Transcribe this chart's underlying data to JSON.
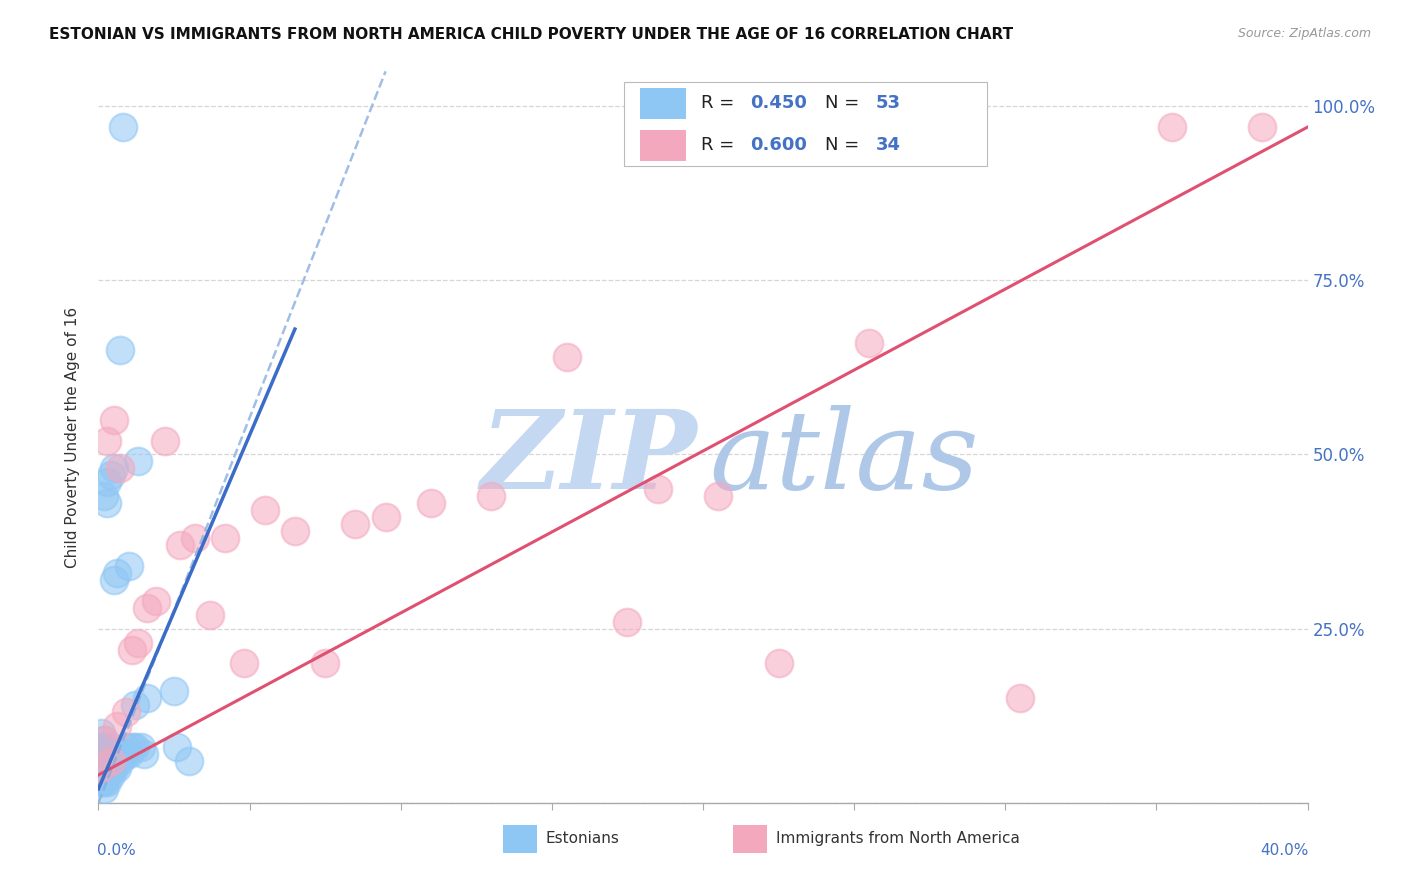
{
  "title": "ESTONIAN VS IMMIGRANTS FROM NORTH AMERICA CHILD POVERTY UNDER THE AGE OF 16 CORRELATION CHART",
  "source": "Source: ZipAtlas.com",
  "ylabel": "Child Poverty Under the Age of 16",
  "r_estonian": "0.450",
  "n_estonian": "53",
  "r_na": "0.600",
  "n_na": "34",
  "estonian_color": "#8EC6F4",
  "na_color": "#F4A8BE",
  "regression_estonian_solid_color": "#3A6CC8",
  "regression_estonian_dashed_color": "#8AAEE0",
  "regression_na_color": "#E05070",
  "watermark_zip_color": "#C5D8F2",
  "watermark_atlas_color": "#B0C8E8",
  "background_color": "#FFFFFF",
  "estonian_x": [
    0.001,
    0.001,
    0.001,
    0.001,
    0.001,
    0.001,
    0.002,
    0.002,
    0.002,
    0.002,
    0.002,
    0.002,
    0.002,
    0.002,
    0.002,
    0.003,
    0.003,
    0.003,
    0.003,
    0.003,
    0.003,
    0.003,
    0.003,
    0.004,
    0.004,
    0.004,
    0.004,
    0.004,
    0.005,
    0.005,
    0.005,
    0.005,
    0.006,
    0.006,
    0.006,
    0.007,
    0.007,
    0.008,
    0.008,
    0.009,
    0.009,
    0.01,
    0.01,
    0.011,
    0.012,
    0.012,
    0.013,
    0.014,
    0.015,
    0.016,
    0.025,
    0.026,
    0.03
  ],
  "estonian_y": [
    0.03,
    0.04,
    0.05,
    0.06,
    0.08,
    0.1,
    0.02,
    0.03,
    0.04,
    0.05,
    0.06,
    0.07,
    0.08,
    0.09,
    0.44,
    0.03,
    0.04,
    0.05,
    0.06,
    0.07,
    0.08,
    0.43,
    0.46,
    0.04,
    0.05,
    0.06,
    0.08,
    0.47,
    0.05,
    0.06,
    0.32,
    0.48,
    0.05,
    0.06,
    0.33,
    0.06,
    0.65,
    0.07,
    0.97,
    0.07,
    0.08,
    0.07,
    0.34,
    0.08,
    0.08,
    0.14,
    0.49,
    0.08,
    0.07,
    0.15,
    0.16,
    0.08,
    0.06
  ],
  "na_x": [
    0.001,
    0.002,
    0.003,
    0.004,
    0.005,
    0.006,
    0.007,
    0.009,
    0.011,
    0.013,
    0.016,
    0.019,
    0.022,
    0.027,
    0.032,
    0.037,
    0.042,
    0.048,
    0.055,
    0.065,
    0.075,
    0.085,
    0.095,
    0.11,
    0.13,
    0.155,
    0.185,
    0.205,
    0.225,
    0.255,
    0.175,
    0.305,
    0.355,
    0.385
  ],
  "na_y": [
    0.05,
    0.09,
    0.52,
    0.06,
    0.55,
    0.11,
    0.48,
    0.13,
    0.22,
    0.23,
    0.28,
    0.29,
    0.52,
    0.37,
    0.38,
    0.27,
    0.38,
    0.2,
    0.42,
    0.39,
    0.2,
    0.4,
    0.41,
    0.43,
    0.44,
    0.64,
    0.45,
    0.44,
    0.2,
    0.66,
    0.26,
    0.15,
    0.97,
    0.97
  ],
  "xlim": [
    0.0,
    0.4
  ],
  "ylim": [
    0.0,
    1.05
  ],
  "ytick_positions": [
    0.0,
    0.25,
    0.5,
    0.75,
    1.0
  ],
  "ytick_labels": [
    "",
    "25.0%",
    "50.0%",
    "75.0%",
    "100.0%"
  ]
}
